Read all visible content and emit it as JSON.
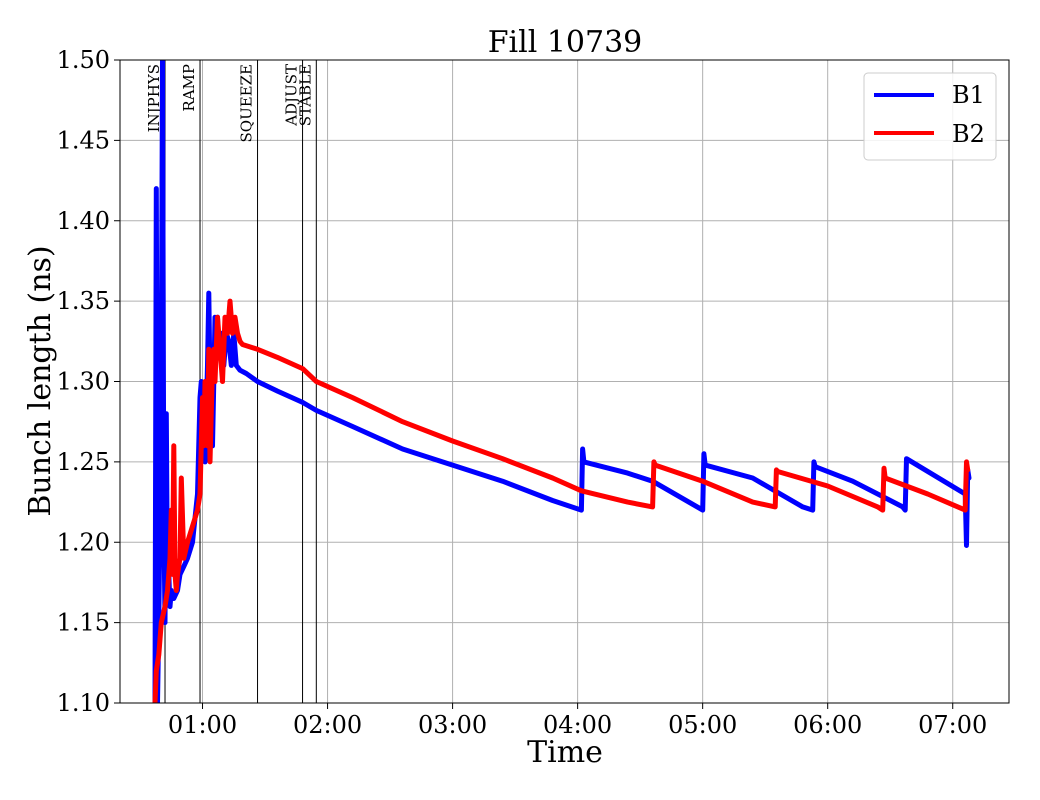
{
  "chart_data": {
    "type": "line",
    "title": "Fill 10739",
    "xlabel": "Time",
    "ylabel": "Bunch length (ns)",
    "x_unit": "hours",
    "xlim": [
      0.34,
      7.45
    ],
    "ylim": [
      1.1,
      1.5
    ],
    "grid": true,
    "legend_position": "top-right",
    "x_ticks": [
      {
        "value": 1,
        "label": "01:00"
      },
      {
        "value": 2,
        "label": "02:00"
      },
      {
        "value": 3,
        "label": "03:00"
      },
      {
        "value": 4,
        "label": "04:00"
      },
      {
        "value": 5,
        "label": "05:00"
      },
      {
        "value": 6,
        "label": "06:00"
      },
      {
        "value": 7,
        "label": "07:00"
      }
    ],
    "y_ticks": [
      {
        "value": 1.1,
        "label": "1.10"
      },
      {
        "value": 1.15,
        "label": "1.15"
      },
      {
        "value": 1.2,
        "label": "1.20"
      },
      {
        "value": 1.25,
        "label": "1.25"
      },
      {
        "value": 1.3,
        "label": "1.30"
      },
      {
        "value": 1.35,
        "label": "1.35"
      },
      {
        "value": 1.4,
        "label": "1.40"
      },
      {
        "value": 1.45,
        "label": "1.45"
      },
      {
        "value": 1.5,
        "label": "1.50"
      }
    ],
    "phases": [
      {
        "label": "INJPHYS",
        "x": 0.7
      },
      {
        "label": "RAMP",
        "x": 0.98
      },
      {
        "label": "SQUEEZE",
        "x": 1.44
      },
      {
        "label": "ADJUST",
        "x": 1.8
      },
      {
        "label": "STABLE",
        "x": 1.91
      }
    ],
    "series": [
      {
        "name": "B1",
        "color": "#0000ff",
        "x": [
          0.62,
          0.63,
          0.635,
          0.64,
          0.65,
          0.66,
          0.67,
          0.68,
          0.69,
          0.7,
          0.71,
          0.72,
          0.73,
          0.74,
          0.75,
          0.77,
          0.8,
          0.82,
          0.85,
          0.88,
          0.92,
          0.96,
          0.98,
          0.99,
          1.0,
          1.02,
          1.04,
          1.05,
          1.06,
          1.07,
          1.08,
          1.09,
          1.1,
          1.11,
          1.12,
          1.13,
          1.15,
          1.17,
          1.19,
          1.21,
          1.23,
          1.25,
          1.27,
          1.3,
          1.35,
          1.44,
          1.6,
          1.8,
          1.91,
          2.2,
          2.6,
          3.0,
          3.4,
          3.8,
          4.03,
          4.04,
          4.05,
          4.4,
          4.6,
          5.0,
          5.01,
          5.02,
          5.4,
          5.8,
          5.88,
          5.89,
          5.9,
          6.2,
          6.6,
          6.62,
          6.63,
          7.1,
          7.11,
          7.12,
          7.13
        ],
        "y": [
          1.1,
          1.42,
          1.3,
          1.1,
          1.15,
          1.22,
          1.3,
          1.5,
          1.22,
          1.15,
          1.28,
          1.17,
          1.18,
          1.16,
          1.17,
          1.165,
          1.17,
          1.18,
          1.185,
          1.19,
          1.2,
          1.23,
          1.29,
          1.3,
          1.27,
          1.25,
          1.31,
          1.355,
          1.3,
          1.27,
          1.26,
          1.3,
          1.34,
          1.32,
          1.34,
          1.32,
          1.33,
          1.31,
          1.33,
          1.325,
          1.31,
          1.33,
          1.31,
          1.307,
          1.305,
          1.3,
          1.294,
          1.287,
          1.282,
          1.272,
          1.258,
          1.248,
          1.238,
          1.226,
          1.22,
          1.258,
          1.25,
          1.243,
          1.238,
          1.22,
          1.255,
          1.248,
          1.24,
          1.222,
          1.22,
          1.25,
          1.247,
          1.238,
          1.222,
          1.22,
          1.252,
          1.23,
          1.198,
          1.245,
          1.24
        ]
      },
      {
        "name": "B2",
        "color": "#ff0000",
        "x": [
          0.62,
          0.63,
          0.65,
          0.67,
          0.7,
          0.72,
          0.74,
          0.75,
          0.76,
          0.77,
          0.78,
          0.79,
          0.8,
          0.82,
          0.83,
          0.85,
          0.88,
          0.92,
          0.96,
          0.98,
          1.0,
          1.01,
          1.02,
          1.03,
          1.04,
          1.05,
          1.06,
          1.08,
          1.09,
          1.1,
          1.12,
          1.14,
          1.16,
          1.18,
          1.2,
          1.22,
          1.24,
          1.26,
          1.28,
          1.3,
          1.32,
          1.44,
          1.6,
          1.8,
          1.91,
          2.2,
          2.6,
          3.0,
          3.4,
          3.8,
          4.03,
          4.4,
          4.6,
          4.61,
          4.62,
          5.0,
          5.4,
          5.58,
          5.59,
          5.6,
          6.0,
          6.4,
          6.44,
          6.45,
          6.46,
          6.8,
          7.1,
          7.11,
          7.12
        ],
        "y": [
          1.1,
          1.12,
          1.13,
          1.15,
          1.16,
          1.17,
          1.19,
          1.22,
          1.18,
          1.26,
          1.18,
          1.17,
          1.18,
          1.19,
          1.24,
          1.19,
          1.2,
          1.21,
          1.22,
          1.23,
          1.29,
          1.26,
          1.3,
          1.29,
          1.26,
          1.32,
          1.25,
          1.31,
          1.32,
          1.3,
          1.34,
          1.32,
          1.3,
          1.34,
          1.33,
          1.35,
          1.33,
          1.34,
          1.33,
          1.325,
          1.323,
          1.32,
          1.315,
          1.308,
          1.3,
          1.29,
          1.275,
          1.263,
          1.252,
          1.24,
          1.232,
          1.225,
          1.222,
          1.25,
          1.248,
          1.238,
          1.225,
          1.222,
          1.245,
          1.244,
          1.235,
          1.222,
          1.22,
          1.246,
          1.24,
          1.23,
          1.22,
          1.25,
          1.245
        ]
      }
    ]
  }
}
